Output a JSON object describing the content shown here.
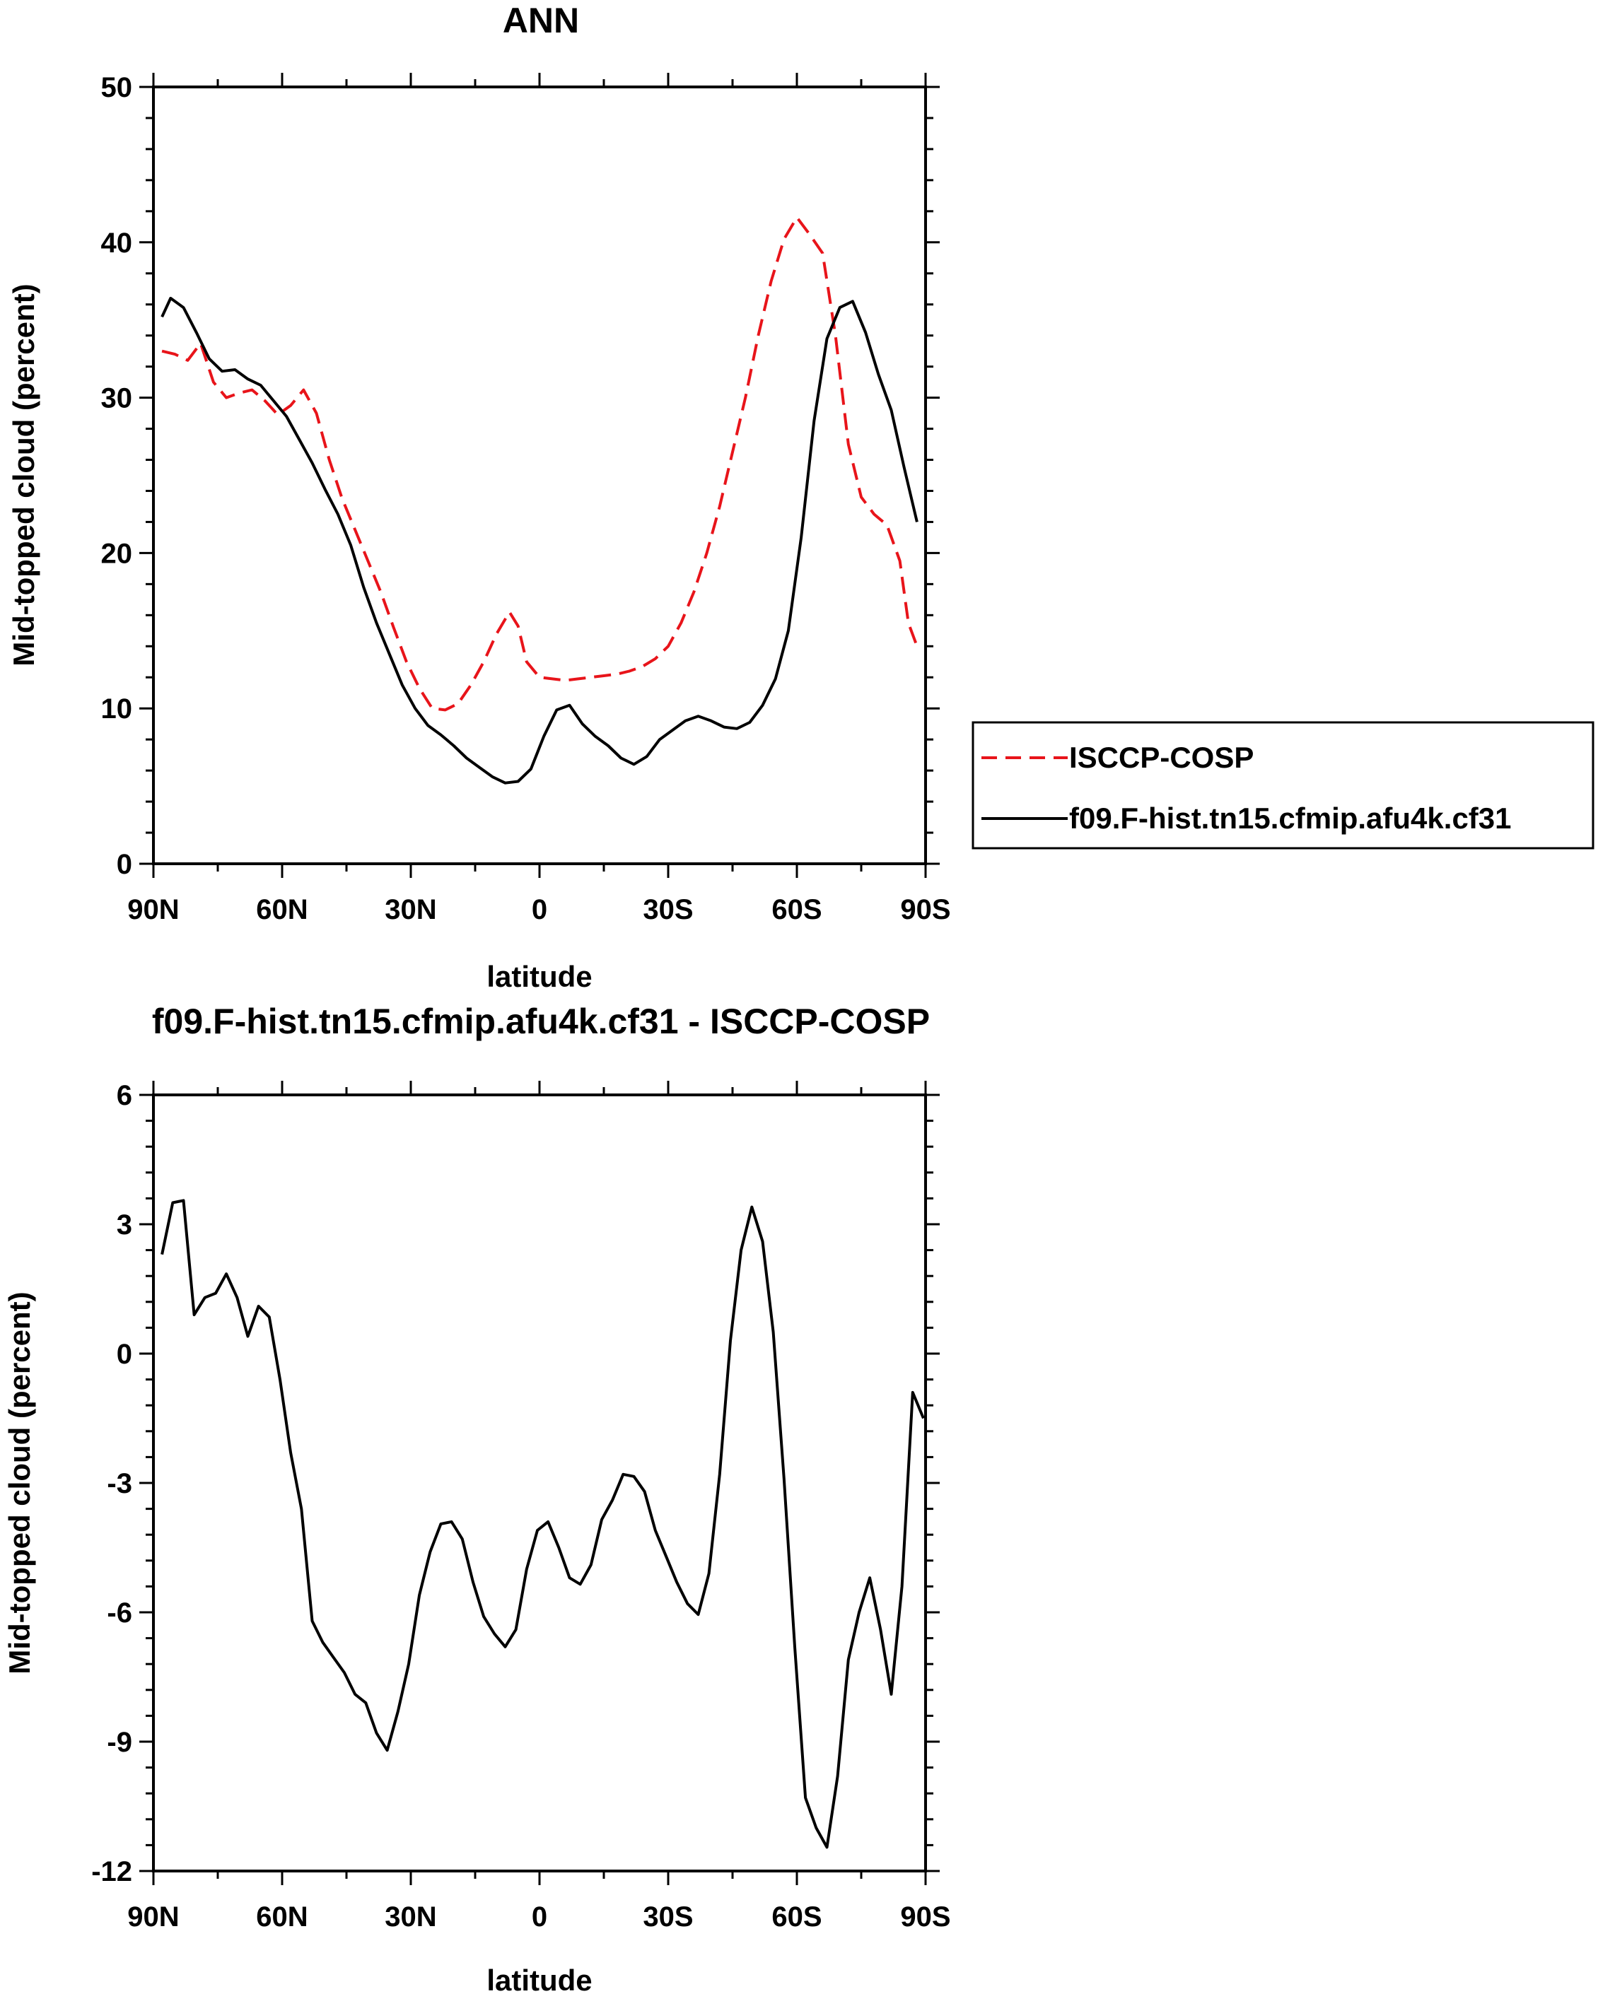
{
  "chart_data": [
    {
      "type": "line",
      "title": "ANN",
      "xlabel": "latitude",
      "ylabel": "Mid-topped cloud (percent)",
      "xlim": [
        -90,
        90
      ],
      "ylim": [
        0,
        50
      ],
      "x_ticks": [
        {
          "value": -90,
          "label": "90N"
        },
        {
          "value": -60,
          "label": "60N"
        },
        {
          "value": -30,
          "label": "30N"
        },
        {
          "value": 0,
          "label": "0"
        },
        {
          "value": 30,
          "label": "30S"
        },
        {
          "value": 60,
          "label": "60S"
        },
        {
          "value": 90,
          "label": "90S"
        }
      ],
      "y_ticks": [
        {
          "value": 0,
          "label": "0"
        },
        {
          "value": 10,
          "label": "10"
        },
        {
          "value": 20,
          "label": "20"
        },
        {
          "value": 30,
          "label": "30"
        },
        {
          "value": 40,
          "label": "40"
        },
        {
          "value": 50,
          "label": "50"
        }
      ],
      "legend": {
        "placement": "right-outside",
        "entries": [
          "ISCCP-COSP",
          "f09.F-hist.tn15.cfmip.afu4k.cf31"
        ]
      },
      "series": [
        {
          "name": "ISCCP-COSP",
          "color": "#e8141a",
          "style": "dashed",
          "x": [
            -88,
            -85,
            -82,
            -79,
            -76,
            -73,
            -70,
            -67,
            -64,
            -61,
            -58,
            -55,
            -52,
            -49,
            -46,
            -43,
            -40,
            -37,
            -34,
            -31,
            -28,
            -25,
            -22,
            -19,
            -16,
            -13,
            -10,
            -7,
            -5,
            -3,
            0,
            3,
            6,
            9,
            12,
            15,
            18,
            21,
            24,
            27,
            30,
            33,
            36,
            39,
            42,
            45,
            48,
            51,
            54,
            57,
            60,
            63,
            66,
            69,
            72,
            75,
            78,
            81,
            84,
            86,
            88
          ],
          "values": [
            33.0,
            32.8,
            32.4,
            33.5,
            31.0,
            30.0,
            30.3,
            30.5,
            29.8,
            28.9,
            29.5,
            30.5,
            29.0,
            26.0,
            23.5,
            21.5,
            19.5,
            17.5,
            15.2,
            13.0,
            11.3,
            10.0,
            9.9,
            10.3,
            11.5,
            13.0,
            14.8,
            16.2,
            15.3,
            13.0,
            12.0,
            11.9,
            11.8,
            11.9,
            12.0,
            12.1,
            12.2,
            12.4,
            12.7,
            13.2,
            14.0,
            15.5,
            17.5,
            20.0,
            23.0,
            26.5,
            30.0,
            34.0,
            37.5,
            40.2,
            41.6,
            40.5,
            39.3,
            34.0,
            27.0,
            23.6,
            22.5,
            21.8,
            19.5,
            15.5,
            14.0
          ]
        },
        {
          "name": "f09.F-hist.tn15.cfmip.afu4k.cf31",
          "color": "#000000",
          "style": "solid",
          "x": [
            -88,
            -86,
            -83,
            -80,
            -77,
            -74,
            -71,
            -68,
            -65,
            -62,
            -59,
            -56,
            -53,
            -50,
            -47,
            -44,
            -41,
            -38,
            -35,
            -32,
            -29,
            -26,
            -23,
            -20,
            -17,
            -14,
            -11,
            -8,
            -5,
            -2,
            1,
            4,
            7,
            10,
            13,
            16,
            19,
            22,
            25,
            28,
            31,
            34,
            37,
            40,
            43,
            46,
            49,
            52,
            55,
            58,
            61,
            64,
            67,
            70,
            73,
            76,
            79,
            82,
            85,
            88
          ],
          "values": [
            35.2,
            36.4,
            35.8,
            34.2,
            32.5,
            31.7,
            31.8,
            31.2,
            30.8,
            29.8,
            28.8,
            27.3,
            25.8,
            24.1,
            22.5,
            20.5,
            17.8,
            15.5,
            13.5,
            11.5,
            10.0,
            8.9,
            8.3,
            7.6,
            6.8,
            6.2,
            5.6,
            5.2,
            5.3,
            6.1,
            8.2,
            9.9,
            10.2,
            9.0,
            8.2,
            7.6,
            6.8,
            6.4,
            6.9,
            8.0,
            8.6,
            9.2,
            9.5,
            9.2,
            8.8,
            8.7,
            9.1,
            10.2,
            11.9,
            15.0,
            21.0,
            28.5,
            33.8,
            35.8,
            36.2,
            34.2,
            31.5,
            29.2,
            25.5,
            22.0
          ]
        }
      ]
    },
    {
      "type": "line",
      "title": "f09.F-hist.tn15.cfmip.afu4k.cf31 - ISCCP-COSP",
      "xlabel": "latitude",
      "ylabel": "Mid-topped cloud (percent)",
      "xlim": [
        -90,
        90
      ],
      "ylim": [
        -12,
        6
      ],
      "x_ticks": [
        {
          "value": -90,
          "label": "90N"
        },
        {
          "value": -60,
          "label": "60N"
        },
        {
          "value": -30,
          "label": "30N"
        },
        {
          "value": 0,
          "label": "0"
        },
        {
          "value": 30,
          "label": "30S"
        },
        {
          "value": 60,
          "label": "60S"
        },
        {
          "value": 90,
          "label": "90S"
        }
      ],
      "y_ticks": [
        {
          "value": -12,
          "label": "-12"
        },
        {
          "value": -9,
          "label": "-9"
        },
        {
          "value": -6,
          "label": "-6"
        },
        {
          "value": -3,
          "label": "-3"
        },
        {
          "value": 0,
          "label": "0"
        },
        {
          "value": 3,
          "label": "3"
        },
        {
          "value": 6,
          "label": "6"
        }
      ],
      "series": [
        {
          "name": "f09.F-hist.tn15.cfmip.afu4k.cf31 - ISCCP-COSP",
          "color": "#000000",
          "style": "solid",
          "x": [
            -88,
            -85.5,
            -83,
            -80.5,
            -78,
            -75.5,
            -73,
            -70.5,
            -68,
            -65.5,
            -63,
            -60.5,
            -58,
            -55.5,
            -53,
            -50.5,
            -48,
            -45.5,
            -43,
            -40.5,
            -38,
            -35.5,
            -33,
            -30.5,
            -28,
            -25.5,
            -23,
            -20.5,
            -18,
            -15.5,
            -13,
            -10.5,
            -8,
            -5.5,
            -3,
            -0.5,
            2,
            4.5,
            7,
            9.5,
            12,
            14.5,
            17,
            19.5,
            22,
            24.5,
            27,
            29.5,
            32,
            34.5,
            37,
            39.5,
            42,
            44.5,
            47,
            49.5,
            52,
            54.5,
            57,
            59.5,
            62,
            64.5,
            67,
            69.5,
            72,
            74.5,
            77,
            79.5,
            82,
            84.5,
            87,
            89.5
          ],
          "values": [
            2.3,
            3.5,
            3.55,
            0.9,
            1.3,
            1.4,
            1.85,
            1.3,
            0.4,
            1.1,
            0.85,
            -0.6,
            -2.3,
            -3.6,
            -6.2,
            -6.7,
            -7.05,
            -7.4,
            -7.9,
            -8.1,
            -8.8,
            -9.2,
            -8.3,
            -7.2,
            -5.6,
            -4.6,
            -3.95,
            -3.9,
            -4.3,
            -5.3,
            -6.1,
            -6.5,
            -6.8,
            -6.4,
            -5.0,
            -4.1,
            -3.9,
            -4.5,
            -5.2,
            -5.35,
            -4.9,
            -3.85,
            -3.4,
            -2.8,
            -2.85,
            -3.2,
            -4.1,
            -4.7,
            -5.3,
            -5.8,
            -6.05,
            -5.1,
            -2.8,
            0.3,
            2.4,
            3.4,
            2.6,
            0.5,
            -2.9,
            -6.8,
            -10.3,
            -11.0,
            -11.45,
            -9.8,
            -7.1,
            -6.0,
            -5.2,
            -6.4,
            -7.9,
            -5.4,
            -0.9,
            -1.5
          ]
        }
      ]
    }
  ]
}
